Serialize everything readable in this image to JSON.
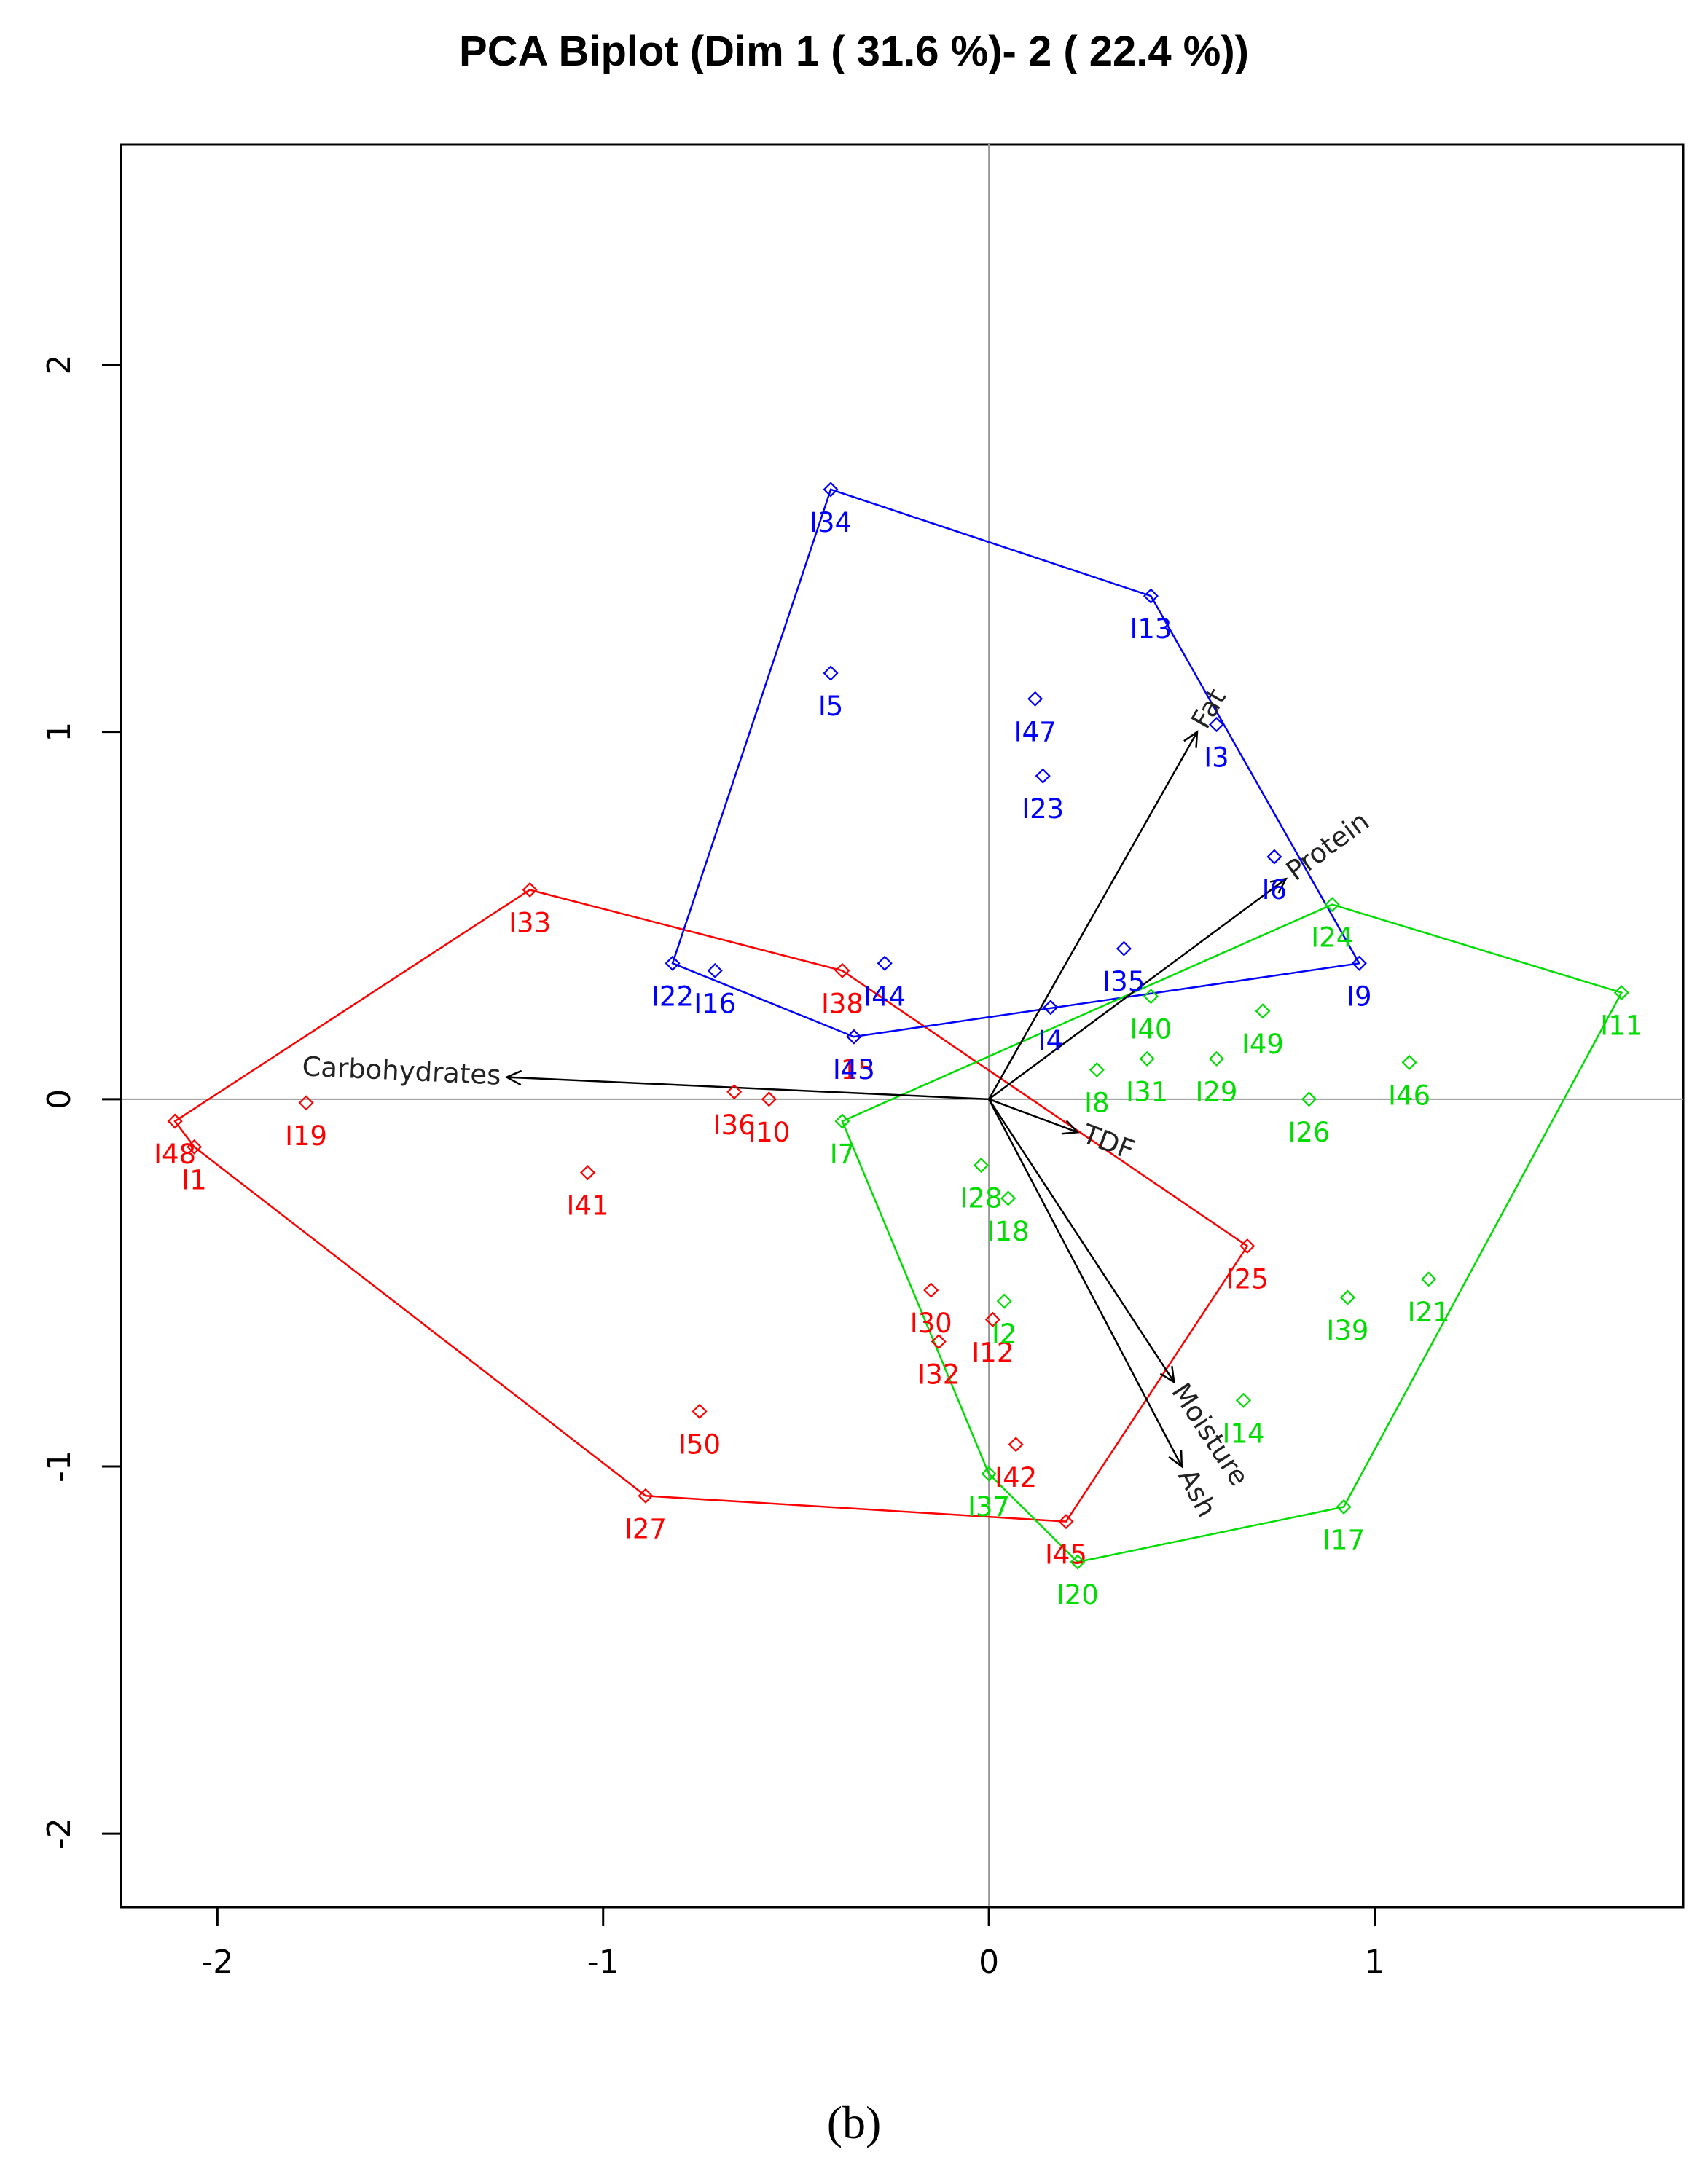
{
  "chart_data": {
    "type": "scatter",
    "title": "PCA Biplot (Dim 1 ( 31.6 %)- 2 ( 22.4 %))",
    "caption": "(b)",
    "xlim": [
      -2.25,
      1.8
    ],
    "ylim": [
      -2.2,
      2.6
    ],
    "x_ticks": [
      -2,
      -1,
      0,
      1
    ],
    "y_ticks": [
      -2,
      -1,
      0,
      1,
      2
    ],
    "x_tick_labels": [
      "-2",
      "-1",
      "0",
      "1"
    ],
    "y_tick_labels": [
      "-2",
      "-1",
      "0",
      "1",
      "2"
    ],
    "reference_lines": {
      "x": 0,
      "y": 0
    },
    "groups": [
      {
        "color": "#ff0000",
        "points": [
          {
            "label": "I1",
            "x": -2.06,
            "y": -0.13
          },
          {
            "label": "I48",
            "x": -2.11,
            "y": -0.06
          },
          {
            "label": "I19",
            "x": -1.77,
            "y": -0.01
          },
          {
            "label": "I33",
            "x": -1.19,
            "y": 0.57
          },
          {
            "label": "I41",
            "x": -1.04,
            "y": -0.2
          },
          {
            "label": "I27",
            "x": -0.89,
            "y": -1.08
          },
          {
            "label": "I50",
            "x": -0.75,
            "y": -0.85
          },
          {
            "label": "I36",
            "x": -0.66,
            "y": 0.02
          },
          {
            "label": "I10",
            "x": -0.57,
            "y": 0.0
          },
          {
            "label": "I38",
            "x": -0.38,
            "y": 0.35
          },
          {
            "label": "I15",
            "x": -0.35,
            "y": 0.17
          },
          {
            "label": "I30",
            "x": -0.15,
            "y": -0.52
          },
          {
            "label": "I32",
            "x": -0.13,
            "y": -0.66
          },
          {
            "label": "I12",
            "x": 0.01,
            "y": -0.6
          },
          {
            "label": "I42",
            "x": 0.07,
            "y": -0.94
          },
          {
            "label": "I45",
            "x": 0.2,
            "y": -1.15
          },
          {
            "label": "I25",
            "x": 0.67,
            "y": -0.4
          }
        ],
        "hull": [
          "I33",
          "I38",
          "I25",
          "I45",
          "I27",
          "I1",
          "I48"
        ]
      },
      {
        "color": "#0000ff",
        "points": [
          {
            "label": "I34",
            "x": -0.41,
            "y": 1.66
          },
          {
            "label": "I5",
            "x": -0.41,
            "y": 1.16
          },
          {
            "label": "I13",
            "x": 0.42,
            "y": 1.37
          },
          {
            "label": "I47",
            "x": 0.12,
            "y": 1.09
          },
          {
            "label": "I23",
            "x": 0.14,
            "y": 0.88
          },
          {
            "label": "I3",
            "x": 0.59,
            "y": 1.02
          },
          {
            "label": "I6",
            "x": 0.74,
            "y": 0.66
          },
          {
            "label": "I9",
            "x": 0.96,
            "y": 0.37
          },
          {
            "label": "I35",
            "x": 0.35,
            "y": 0.41
          },
          {
            "label": "I4",
            "x": 0.16,
            "y": 0.25
          },
          {
            "label": "I44",
            "x": -0.27,
            "y": 0.37
          },
          {
            "label": "I43",
            "x": -0.35,
            "y": 0.17
          },
          {
            "label": "I22",
            "x": -0.82,
            "y": 0.37
          },
          {
            "label": "I16",
            "x": -0.71,
            "y": 0.35
          }
        ],
        "hull": [
          "I34",
          "I13",
          "I9",
          "I43",
          "I22"
        ]
      },
      {
        "color": "#00dd00",
        "points": [
          {
            "label": "I11",
            "x": 1.64,
            "y": 0.29
          },
          {
            "label": "I24",
            "x": 0.89,
            "y": 0.53
          },
          {
            "label": "I40",
            "x": 0.42,
            "y": 0.28
          },
          {
            "label": "I49",
            "x": 0.71,
            "y": 0.24
          },
          {
            "label": "I31",
            "x": 0.41,
            "y": 0.11
          },
          {
            "label": "I29",
            "x": 0.59,
            "y": 0.11
          },
          {
            "label": "I46",
            "x": 1.09,
            "y": 0.1
          },
          {
            "label": "I8",
            "x": 0.28,
            "y": 0.08
          },
          {
            "label": "I26",
            "x": 0.83,
            "y": 0.0
          },
          {
            "label": "I7",
            "x": -0.38,
            "y": -0.06
          },
          {
            "label": "I28",
            "x": -0.02,
            "y": -0.18
          },
          {
            "label": "I18",
            "x": 0.05,
            "y": -0.27
          },
          {
            "label": "I2",
            "x": 0.04,
            "y": -0.55
          },
          {
            "label": "I39",
            "x": 0.93,
            "y": -0.54
          },
          {
            "label": "I21",
            "x": 1.14,
            "y": -0.49
          },
          {
            "label": "I14",
            "x": 0.66,
            "y": -0.82
          },
          {
            "label": "I37",
            "x": 0.0,
            "y": -1.02
          },
          {
            "label": "I17",
            "x": 0.92,
            "y": -1.11
          },
          {
            "label": "I20",
            "x": 0.23,
            "y": -1.26
          }
        ],
        "hull": [
          "I11",
          "I17",
          "I20",
          "I37",
          "I7",
          "I24"
        ]
      }
    ],
    "variables": [
      {
        "name": "Carbohydrates",
        "x": -1.25,
        "y": 0.06
      },
      {
        "name": "Fat",
        "x": 0.54,
        "y": 1.0
      },
      {
        "name": "Protein",
        "x": 0.77,
        "y": 0.6
      },
      {
        "name": "TDF",
        "x": 0.23,
        "y": -0.09
      },
      {
        "name": "Moisture",
        "x": 0.48,
        "y": -0.77
      },
      {
        "name": "Ash",
        "x": 0.5,
        "y": -1.0
      }
    ]
  }
}
